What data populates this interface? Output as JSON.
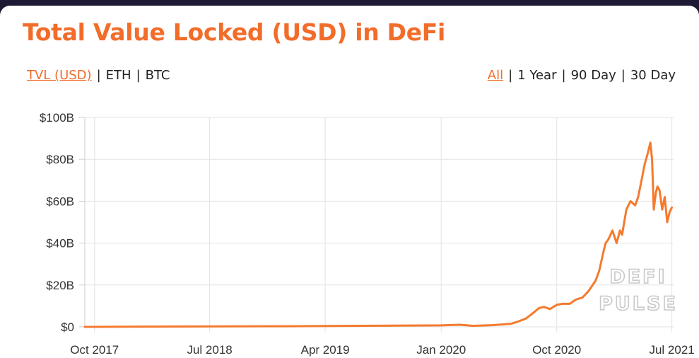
{
  "header": {
    "title": "Total Value Locked (USD) in DeFi"
  },
  "filters": {
    "metric": [
      {
        "label": "TVL (USD)",
        "active": true
      },
      {
        "label": "ETH",
        "active": false
      },
      {
        "label": "BTC",
        "active": false
      }
    ],
    "range": [
      {
        "label": "All",
        "active": true
      },
      {
        "label": "1 Year",
        "active": false
      },
      {
        "label": "90 Day",
        "active": false
      },
      {
        "label": "30 Day",
        "active": false
      }
    ],
    "separator": "|"
  },
  "watermark": {
    "line1": "DEFI",
    "line2": "PULSE"
  },
  "colors": {
    "accent": "#f26c2a",
    "line": "#f47a2e",
    "grid": "#e3e3e3"
  },
  "chart_data": {
    "type": "line",
    "title": "Total Value Locked (USD) in DeFi",
    "xlabel": "",
    "ylabel": "",
    "ylim": [
      0,
      100
    ],
    "y_unit": "billion USD",
    "y_ticks": [
      {
        "value": 0,
        "label": "$0"
      },
      {
        "value": 20,
        "label": "$20B"
      },
      {
        "value": 40,
        "label": "$40B"
      },
      {
        "value": 60,
        "label": "$60B"
      },
      {
        "value": 80,
        "label": "$80B"
      },
      {
        "value": 100,
        "label": "$100B"
      }
    ],
    "x_ticks": [
      {
        "value": "2017-10-01",
        "label": "Oct 2017"
      },
      {
        "value": "2018-07-01",
        "label": "Jul 2018"
      },
      {
        "value": "2019-04-01",
        "label": "Apr 2019"
      },
      {
        "value": "2020-01-01",
        "label": "Jan 2020"
      },
      {
        "value": "2020-10-01",
        "label": "Oct 2020"
      },
      {
        "value": "2021-07-01",
        "label": "Jul 2021"
      }
    ],
    "xlim": [
      "2017-09-08",
      "2021-07-05"
    ],
    "grid": true,
    "series": [
      {
        "points": [
          [
            "2017-09-08",
            0.0
          ],
          [
            "2018-01-01",
            0.1
          ],
          [
            "2018-07-01",
            0.2
          ],
          [
            "2019-01-01",
            0.3
          ],
          [
            "2019-07-01",
            0.5
          ],
          [
            "2020-01-01",
            0.7
          ],
          [
            "2020-02-14",
            1.0
          ],
          [
            "2020-03-16",
            0.5
          ],
          [
            "2020-05-01",
            0.8
          ],
          [
            "2020-06-15",
            1.5
          ],
          [
            "2020-07-01",
            2.5
          ],
          [
            "2020-07-20",
            4.0
          ],
          [
            "2020-08-05",
            6.5
          ],
          [
            "2020-08-20",
            9.0
          ],
          [
            "2020-09-01",
            9.5
          ],
          [
            "2020-09-15",
            8.5
          ],
          [
            "2020-10-01",
            10.5
          ],
          [
            "2020-10-15",
            11.0
          ],
          [
            "2020-11-01",
            11.0
          ],
          [
            "2020-11-15",
            13.0
          ],
          [
            "2020-12-01",
            14.0
          ],
          [
            "2020-12-15",
            17.0
          ],
          [
            "2021-01-01",
            22.0
          ],
          [
            "2021-01-10",
            27.0
          ],
          [
            "2021-01-20",
            36.0
          ],
          [
            "2021-01-25",
            40.0
          ],
          [
            "2021-02-01",
            42.0
          ],
          [
            "2021-02-10",
            46.0
          ],
          [
            "2021-02-20",
            40.0
          ],
          [
            "2021-02-28",
            46.0
          ],
          [
            "2021-03-05",
            44.0
          ],
          [
            "2021-03-15",
            56.0
          ],
          [
            "2021-03-25",
            60.0
          ],
          [
            "2021-04-05",
            58.0
          ],
          [
            "2021-04-12",
            62.0
          ],
          [
            "2021-04-20",
            70.0
          ],
          [
            "2021-04-28",
            78.0
          ],
          [
            "2021-05-05",
            83.0
          ],
          [
            "2021-05-11",
            88.0
          ],
          [
            "2021-05-15",
            80.0
          ],
          [
            "2021-05-19",
            56.0
          ],
          [
            "2021-05-24",
            64.0
          ],
          [
            "2021-05-28",
            67.0
          ],
          [
            "2021-06-02",
            65.0
          ],
          [
            "2021-06-08",
            56.0
          ],
          [
            "2021-06-14",
            62.0
          ],
          [
            "2021-06-20",
            50.0
          ],
          [
            "2021-06-26",
            55.0
          ],
          [
            "2021-07-01",
            57.0
          ]
        ]
      }
    ]
  }
}
